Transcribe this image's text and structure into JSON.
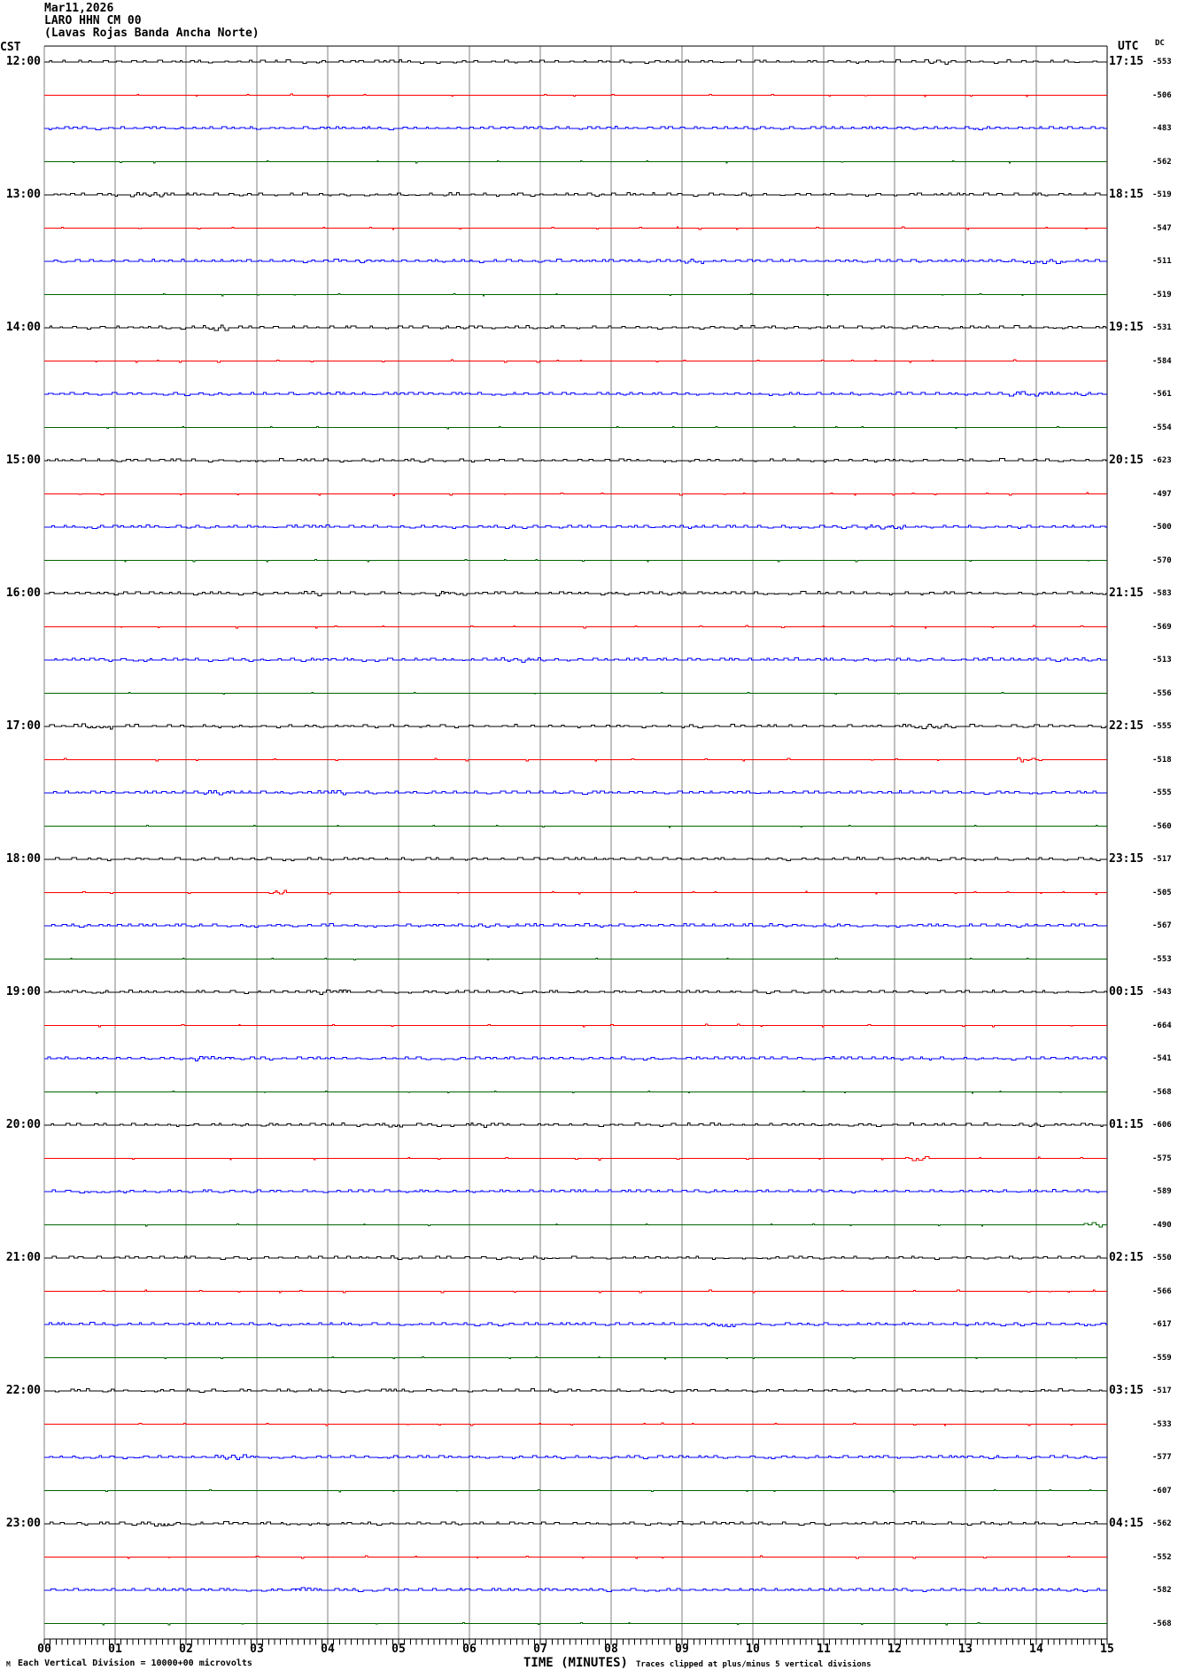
{
  "header": {
    "date": "Mar11,2026",
    "station": "LARO HHN CM 00",
    "subtitle": "(Lavas Rojas Banda Ancha Norte)"
  },
  "axes": {
    "left_header": "CST",
    "right_header": "UTC",
    "dc_header": "DC",
    "x_labels": [
      "00",
      "01",
      "02",
      "03",
      "04",
      "05",
      "06",
      "07",
      "08",
      "09",
      "10",
      "11",
      "12",
      "13",
      "14",
      "15"
    ],
    "x_title": "TIME (MINUTES)",
    "clip_note": "Traces clipped at plus/minus 5 vertical divisions",
    "scale_note": "Each Vertical Division = 10000+00 microvolts",
    "corner_mark": "M"
  },
  "chart_data": {
    "type": "line",
    "description": "Helicorder/webicorder seismogram: 12 hour rows, 4 traces per hour (15-minute segments), mostly flat telemetry noise with small square pulses",
    "x_axis": {
      "label": "TIME (MINUTES)",
      "range_minutes": [
        0,
        15
      ],
      "major_tick_every_minutes": 1,
      "minor_ticks_per_minute": 12
    },
    "grid": "vertical minute lines only",
    "trace_color_cycle": [
      "black",
      "red",
      "blue",
      "green"
    ],
    "activity_by_color": {
      "black": "busy",
      "red": "sparse",
      "blue": "busiest",
      "green": "vsparse"
    },
    "colors": {
      "black": "#000000",
      "red": "#ff0000",
      "blue": "#0000ff",
      "green": "#006400",
      "grid": "#808080"
    },
    "rows": [
      {
        "cst": "12:00",
        "utc": "17:15",
        "dc": [
          "-553",
          "-506",
          "-483",
          "-562"
        ]
      },
      {
        "cst": "13:00",
        "utc": "18:15",
        "dc": [
          "-519",
          "-547",
          "-511",
          "-519"
        ]
      },
      {
        "cst": "14:00",
        "utc": "19:15",
        "dc": [
          "-531",
          "-584",
          "-561",
          "-554"
        ]
      },
      {
        "cst": "15:00",
        "utc": "20:15",
        "dc": [
          "-623",
          "-497",
          "-500",
          "-570"
        ]
      },
      {
        "cst": "16:00",
        "utc": "21:15",
        "dc": [
          "-583",
          "-569",
          "-513",
          "-556"
        ]
      },
      {
        "cst": "17:00",
        "utc": "22:15",
        "dc": [
          "-555",
          "-518",
          "-555",
          "-560"
        ]
      },
      {
        "cst": "18:00",
        "utc": "23:15",
        "dc": [
          "-517",
          "-505",
          "-567",
          "-553"
        ]
      },
      {
        "cst": "19:00",
        "utc": "00:15",
        "dc": [
          "-543",
          "-664",
          "-541",
          "-568"
        ]
      },
      {
        "cst": "20:00",
        "utc": "01:15",
        "dc": [
          "-606",
          "-575",
          "-589",
          "-490"
        ]
      },
      {
        "cst": "21:00",
        "utc": "02:15",
        "dc": [
          "-550",
          "-566",
          "-617",
          "-559"
        ]
      },
      {
        "cst": "22:00",
        "utc": "03:15",
        "dc": [
          "-517",
          "-533",
          "-577",
          "-607"
        ]
      },
      {
        "cst": "23:00",
        "utc": "04:15",
        "dc": [
          "-562",
          "-552",
          "-582",
          "-568"
        ]
      }
    ]
  }
}
